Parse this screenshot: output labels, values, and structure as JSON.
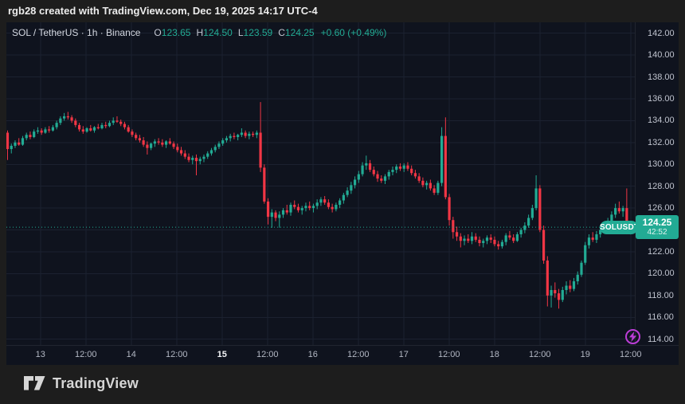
{
  "attribution": {
    "text": "rgb28 created with TradingView.com, Dec 19, 2025 14:17 UTC-4"
  },
  "watermark": {
    "brand": "TradingView"
  },
  "colors": {
    "up": "#22ab94",
    "down": "#f23645",
    "grid": "#1b2130",
    "panel_bg": "#0f131e",
    "frame_bg": "#1d1d1d",
    "axis_text": "#c0c4cf",
    "realtime_icon": "#bb3dd6"
  },
  "header": {
    "symbol_title": "SOL / TetherUS · 1h · Binance",
    "ohlc": [
      {
        "label": "O",
        "value": "123.65"
      },
      {
        "label": "H",
        "value": "124.50"
      },
      {
        "label": "L",
        "value": "123.59"
      },
      {
        "label": "C",
        "value": "124.25"
      }
    ],
    "change": "+0.60 (+0.49%)"
  },
  "price_marker": {
    "badge": "SOLUSDT",
    "price": "124.25",
    "countdown": "42:52"
  },
  "chart_data": {
    "type": "candlestick",
    "title": "SOL / TetherUS · 1h · Binance",
    "symbol": "SOL/USDT",
    "interval": "1h",
    "exchange": "Binance",
    "last_price": 124.25,
    "ohlc_current": {
      "open": 123.65,
      "high": 124.5,
      "low": 123.59,
      "close": 124.25,
      "change": 0.6,
      "change_pct": 0.49
    },
    "legend_position": "top-left",
    "grid": true,
    "y_axis": {
      "side": "right",
      "range": [
        113.3,
        143.0
      ],
      "ticks": [
        {
          "value": 142,
          "label": "142.00"
        },
        {
          "value": 140,
          "label": "140.00"
        },
        {
          "value": 138,
          "label": "138.00"
        },
        {
          "value": 136,
          "label": "136.00"
        },
        {
          "value": 134,
          "label": "134.00"
        },
        {
          "value": 132,
          "label": "132.00"
        },
        {
          "value": 130,
          "label": "130.00"
        },
        {
          "value": 128,
          "label": "128.00"
        },
        {
          "value": 126,
          "label": "126.00"
        },
        {
          "value": 124,
          "label": "124.00"
        },
        {
          "value": 122,
          "label": "122.00"
        },
        {
          "value": 120,
          "label": "120.00"
        },
        {
          "value": 118,
          "label": "118.00"
        },
        {
          "value": 116,
          "label": "116.00"
        },
        {
          "value": 114,
          "label": "114.00"
        }
      ]
    },
    "x_axis": {
      "hours_per_tick": 12,
      "ticks": [
        {
          "label": "13",
          "emphasis": false
        },
        {
          "label": "12:00",
          "emphasis": false
        },
        {
          "label": "14",
          "emphasis": false
        },
        {
          "label": "12:00",
          "emphasis": false
        },
        {
          "label": "15",
          "emphasis": true
        },
        {
          "label": "12:00",
          "emphasis": false
        },
        {
          "label": "16",
          "emphasis": false
        },
        {
          "label": "12:00",
          "emphasis": false
        },
        {
          "label": "17",
          "emphasis": false
        },
        {
          "label": "12:00",
          "emphasis": false
        },
        {
          "label": "18",
          "emphasis": false
        },
        {
          "label": "12:00",
          "emphasis": false
        },
        {
          "label": "19",
          "emphasis": false
        },
        {
          "label": "12:00",
          "emphasis": false
        }
      ]
    },
    "candle_interval_hours": 1,
    "candles": [
      [
        132.9,
        133.1,
        130.4,
        131.4
      ],
      [
        131.4,
        131.9,
        131.0,
        131.7
      ],
      [
        131.7,
        132.2,
        131.5,
        132.0
      ],
      [
        132.0,
        132.4,
        131.7,
        131.8
      ],
      [
        131.8,
        132.6,
        131.7,
        132.4
      ],
      [
        132.4,
        132.9,
        132.2,
        132.7
      ],
      [
        132.7,
        133.0,
        132.3,
        132.5
      ],
      [
        132.5,
        133.2,
        132.4,
        133.0
      ],
      [
        133.0,
        133.4,
        132.8,
        133.1
      ],
      [
        133.1,
        133.3,
        132.7,
        132.9
      ],
      [
        132.9,
        133.4,
        132.8,
        133.2
      ],
      [
        133.2,
        133.5,
        132.9,
        133.1
      ],
      [
        133.1,
        133.6,
        133.0,
        133.4
      ],
      [
        133.4,
        134.0,
        133.2,
        133.8
      ],
      [
        133.8,
        134.4,
        133.6,
        134.2
      ],
      [
        134.2,
        134.7,
        134.0,
        134.4
      ],
      [
        134.4,
        134.8,
        134.1,
        134.3
      ],
      [
        134.3,
        134.5,
        133.8,
        134.0
      ],
      [
        134.0,
        134.2,
        133.4,
        133.6
      ],
      [
        133.6,
        133.8,
        133.0,
        133.2
      ],
      [
        133.2,
        133.5,
        132.8,
        133.0
      ],
      [
        133.0,
        133.4,
        132.9,
        133.3
      ],
      [
        133.3,
        133.6,
        133.0,
        133.1
      ],
      [
        133.1,
        133.5,
        132.9,
        133.4
      ],
      [
        133.4,
        133.7,
        133.2,
        133.3
      ],
      [
        133.3,
        133.8,
        133.2,
        133.6
      ],
      [
        133.6,
        133.9,
        133.3,
        133.5
      ],
      [
        133.5,
        134.0,
        133.4,
        133.8
      ],
      [
        133.8,
        134.3,
        133.6,
        134.0
      ],
      [
        134.0,
        134.4,
        133.8,
        133.9
      ],
      [
        133.9,
        134.1,
        133.5,
        133.7
      ],
      [
        133.7,
        133.9,
        133.2,
        133.4
      ],
      [
        133.4,
        133.6,
        132.9,
        133.0
      ],
      [
        133.0,
        133.2,
        132.5,
        132.7
      ],
      [
        132.7,
        132.9,
        132.2,
        132.4
      ],
      [
        132.4,
        132.7,
        132.0,
        132.2
      ],
      [
        132.2,
        132.5,
        131.6,
        131.8
      ],
      [
        131.8,
        132.1,
        130.9,
        131.5
      ],
      [
        131.5,
        132.0,
        131.3,
        131.9
      ],
      [
        131.9,
        132.3,
        131.6,
        132.1
      ],
      [
        132.1,
        132.4,
        131.8,
        132.0
      ],
      [
        132.0,
        132.3,
        131.6,
        131.8
      ],
      [
        131.8,
        132.2,
        131.5,
        132.1
      ],
      [
        132.1,
        132.4,
        131.8,
        131.9
      ],
      [
        131.9,
        132.1,
        131.4,
        131.6
      ],
      [
        131.6,
        131.9,
        131.1,
        131.3
      ],
      [
        131.3,
        131.6,
        130.8,
        131.0
      ],
      [
        131.0,
        131.3,
        130.5,
        130.7
      ],
      [
        130.7,
        131.0,
        130.2,
        130.4
      ],
      [
        130.4,
        130.8,
        130.0,
        130.6
      ],
      [
        130.6,
        130.9,
        129.0,
        130.3
      ],
      [
        130.3,
        130.7,
        130.0,
        130.5
      ],
      [
        130.5,
        130.9,
        130.2,
        130.7
      ],
      [
        130.7,
        131.2,
        130.5,
        131.0
      ],
      [
        131.0,
        131.5,
        130.8,
        131.3
      ],
      [
        131.3,
        131.8,
        131.1,
        131.6
      ],
      [
        131.6,
        132.1,
        131.4,
        131.9
      ],
      [
        131.9,
        132.4,
        131.7,
        132.2
      ],
      [
        132.2,
        132.6,
        132.0,
        132.4
      ],
      [
        132.4,
        132.8,
        132.1,
        132.6
      ],
      [
        132.6,
        132.9,
        132.3,
        132.5
      ],
      [
        132.5,
        132.8,
        132.2,
        132.7
      ],
      [
        132.7,
        133.3,
        132.5,
        132.9
      ],
      [
        132.9,
        133.1,
        132.4,
        132.6
      ],
      [
        132.6,
        133.0,
        132.3,
        132.8
      ],
      [
        132.8,
        133.0,
        132.5,
        132.7
      ],
      [
        132.7,
        133.1,
        132.4,
        132.9
      ],
      [
        132.9,
        135.7,
        129.3,
        129.7
      ],
      [
        129.7,
        130.0,
        126.4,
        126.6
      ],
      [
        126.6,
        126.9,
        124.5,
        125.2
      ],
      [
        125.2,
        125.9,
        124.2,
        125.6
      ],
      [
        125.6,
        125.8,
        124.8,
        125.1
      ],
      [
        125.1,
        125.7,
        124.2,
        125.4
      ],
      [
        125.4,
        126.0,
        125.1,
        125.8
      ],
      [
        125.8,
        126.3,
        125.4,
        125.6
      ],
      [
        125.6,
        126.5,
        125.3,
        126.3
      ],
      [
        126.3,
        126.7,
        125.9,
        126.1
      ],
      [
        126.1,
        126.4,
        125.6,
        125.8
      ],
      [
        125.8,
        126.2,
        125.4,
        126.0
      ],
      [
        126.0,
        126.5,
        125.7,
        126.2
      ],
      [
        126.2,
        126.6,
        125.8,
        126.0
      ],
      [
        126.0,
        126.4,
        125.6,
        126.2
      ],
      [
        126.2,
        126.8,
        125.9,
        126.5
      ],
      [
        126.5,
        127.0,
        126.2,
        126.8
      ],
      [
        126.8,
        127.1,
        126.3,
        126.5
      ],
      [
        126.5,
        126.8,
        125.9,
        126.1
      ],
      [
        126.1,
        126.4,
        125.6,
        125.9
      ],
      [
        125.9,
        126.5,
        125.7,
        126.3
      ],
      [
        126.3,
        126.9,
        126.0,
        126.7
      ],
      [
        126.7,
        127.4,
        126.4,
        127.2
      ],
      [
        127.2,
        127.9,
        127.0,
        127.6
      ],
      [
        127.6,
        128.4,
        127.3,
        128.1
      ],
      [
        128.1,
        128.9,
        127.8,
        128.6
      ],
      [
        128.6,
        129.4,
        128.3,
        129.1
      ],
      [
        129.1,
        130.2,
        128.9,
        129.9
      ],
      [
        129.9,
        130.8,
        129.5,
        130.1
      ],
      [
        130.1,
        130.4,
        129.3,
        129.5
      ],
      [
        129.5,
        129.8,
        128.9,
        129.1
      ],
      [
        129.1,
        129.4,
        128.4,
        128.7
      ],
      [
        128.7,
        129.0,
        128.3,
        128.5
      ],
      [
        128.5,
        129.1,
        128.2,
        128.9
      ],
      [
        128.9,
        129.5,
        128.6,
        129.3
      ],
      [
        129.3,
        129.8,
        129.0,
        129.5
      ],
      [
        129.5,
        130.0,
        129.2,
        129.8
      ],
      [
        129.8,
        130.1,
        129.4,
        129.6
      ],
      [
        129.6,
        130.1,
        129.3,
        129.9
      ],
      [
        129.9,
        130.2,
        129.4,
        129.6
      ],
      [
        129.6,
        129.9,
        129.0,
        129.2
      ],
      [
        129.2,
        129.5,
        128.7,
        128.9
      ],
      [
        128.9,
        129.2,
        128.3,
        128.5
      ],
      [
        128.5,
        128.8,
        127.9,
        128.1
      ],
      [
        128.1,
        128.5,
        127.7,
        128.3
      ],
      [
        128.3,
        128.6,
        127.6,
        127.8
      ],
      [
        127.8,
        128.1,
        127.2,
        127.4
      ],
      [
        127.4,
        128.5,
        127.2,
        128.3
      ],
      [
        128.3,
        133.4,
        128.0,
        132.6
      ],
      [
        132.6,
        134.3,
        126.8,
        127.0
      ],
      [
        127.0,
        127.3,
        124.4,
        124.9
      ],
      [
        124.9,
        125.2,
        123.2,
        123.8
      ],
      [
        123.8,
        124.3,
        123.0,
        123.4
      ],
      [
        123.4,
        123.7,
        122.4,
        123.0
      ],
      [
        123.0,
        123.5,
        122.6,
        123.2
      ],
      [
        123.2,
        123.6,
        122.8,
        123.0
      ],
      [
        123.0,
        123.8,
        122.7,
        123.4
      ],
      [
        123.4,
        123.7,
        122.9,
        123.1
      ],
      [
        123.1,
        123.4,
        122.5,
        122.8
      ],
      [
        122.8,
        123.2,
        122.4,
        123.0
      ],
      [
        123.0,
        123.5,
        122.7,
        123.3
      ],
      [
        123.3,
        123.6,
        122.8,
        123.1
      ],
      [
        123.1,
        123.4,
        122.5,
        122.7
      ],
      [
        122.7,
        123.0,
        122.2,
        122.5
      ],
      [
        122.5,
        123.1,
        122.3,
        122.9
      ],
      [
        122.9,
        123.7,
        122.6,
        123.5
      ],
      [
        123.5,
        123.9,
        123.1,
        123.3
      ],
      [
        123.3,
        123.6,
        122.8,
        123.0
      ],
      [
        123.0,
        123.8,
        122.9,
        123.6
      ],
      [
        123.6,
        124.2,
        123.3,
        124.0
      ],
      [
        124.0,
        124.7,
        123.7,
        124.4
      ],
      [
        124.4,
        125.4,
        124.2,
        125.1
      ],
      [
        125.1,
        126.3,
        124.9,
        126.0
      ],
      [
        126.0,
        129.0,
        125.8,
        127.8
      ],
      [
        127.8,
        128.1,
        123.8,
        124.0
      ],
      [
        124.0,
        124.4,
        120.9,
        121.2
      ],
      [
        121.2,
        121.6,
        117.0,
        118.0
      ],
      [
        118.0,
        118.9,
        116.9,
        118.5
      ],
      [
        118.5,
        119.2,
        117.8,
        118.2
      ],
      [
        118.2,
        118.6,
        116.8,
        117.6
      ],
      [
        117.6,
        118.8,
        117.4,
        118.5
      ],
      [
        118.5,
        119.3,
        118.1,
        118.9
      ],
      [
        118.9,
        119.4,
        118.3,
        118.6
      ],
      [
        118.6,
        119.6,
        118.4,
        119.3
      ],
      [
        119.3,
        120.2,
        119.0,
        119.9
      ],
      [
        119.9,
        121.2,
        119.7,
        121.0
      ],
      [
        121.0,
        122.9,
        120.8,
        122.6
      ],
      [
        122.6,
        123.6,
        122.3,
        123.3
      ],
      [
        123.3,
        123.8,
        122.9,
        123.1
      ],
      [
        123.1,
        123.9,
        122.8,
        123.6
      ],
      [
        123.6,
        124.2,
        123.3,
        124.0
      ],
      [
        124.0,
        124.6,
        123.7,
        124.3
      ],
      [
        124.3,
        125.1,
        124.0,
        124.8
      ],
      [
        124.8,
        125.7,
        124.5,
        125.4
      ],
      [
        125.4,
        126.4,
        125.1,
        126.0
      ],
      [
        126.0,
        126.6,
        125.5,
        125.7
      ],
      [
        125.7,
        126.2,
        125.2,
        126.0
      ],
      [
        126.0,
        127.8,
        123.6,
        123.65
      ],
      [
        123.65,
        124.5,
        123.59,
        124.25
      ]
    ]
  }
}
